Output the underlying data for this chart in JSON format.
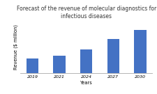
{
  "categories": [
    "2019",
    "2021",
    "2024",
    "2027",
    "2030"
  ],
  "values": [
    2.8,
    3.4,
    4.5,
    6.5,
    8.2
  ],
  "bar_color": "#4472C4",
  "title": "Forecast of the revenue of molecular diagnostics for\ninfectious diseases",
  "xlabel": "Years",
  "ylabel": "Revenue ($ million)",
  "title_fontsize": 5.5,
  "label_fontsize": 4.8,
  "tick_fontsize": 4.5,
  "background_color": "#ffffff",
  "ylim": [
    0,
    10
  ],
  "bar_width": 0.45
}
